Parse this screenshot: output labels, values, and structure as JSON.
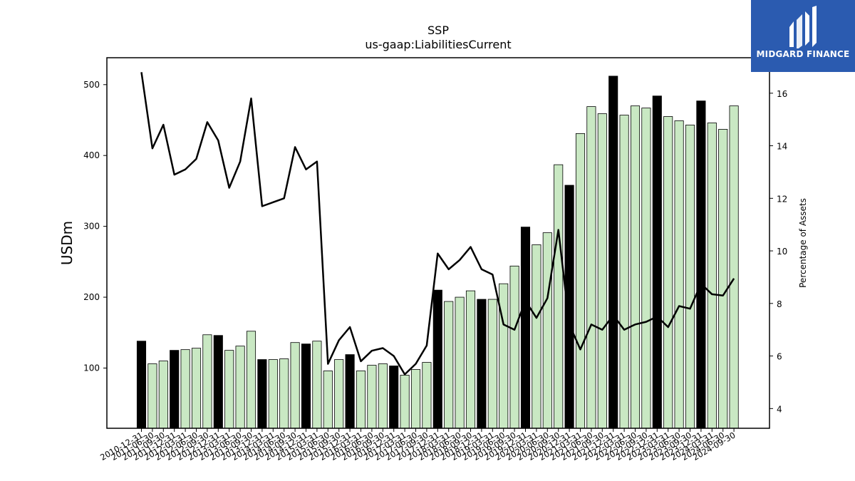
{
  "brand": {
    "name": "MIDGARD FINANCE",
    "logo_icon": "midgard-logo-icon",
    "color": "#2b5bb0"
  },
  "colors": {
    "bar_normal": "#c9e8c3",
    "bar_highlight": "#000000",
    "line": "#000000"
  },
  "chart_data": {
    "type": "bar",
    "title": "SSP",
    "subtitle": "us-gaap:LiabilitiesCurrent",
    "ylabel": "USDm",
    "y2label": "Percentage of Assets",
    "ylim": [
      15,
      538
    ],
    "y2lim": [
      3.25,
      17.35
    ],
    "yticks": [
      100,
      200,
      300,
      400,
      500
    ],
    "y2ticks": [
      4,
      6,
      8,
      10,
      12,
      14,
      16
    ],
    "grid": false,
    "categories": [
      "2010-12-31",
      "2011-06-30",
      "2011-09-30",
      "2011-12-31",
      "2012-03-31",
      "2012-06-30",
      "2012-09-30",
      "2012-12-31",
      "2013-03-31",
      "2013-06-30",
      "2013-09-30",
      "2013-12-31",
      "2014-03-31",
      "2014-06-30",
      "2014-09-30",
      "2014-12-31",
      "2015-03-31",
      "2015-06-30",
      "2015-09-30",
      "2015-12-31",
      "2016-03-31",
      "2016-06-30",
      "2016-09-30",
      "2016-12-31",
      "2017-03-31",
      "2017-06-30",
      "2017-09-30",
      "2017-12-31",
      "2018-03-31",
      "2018-06-30",
      "2018-09-30",
      "2018-12-31",
      "2019-03-31",
      "2019-06-30",
      "2019-09-30",
      "2019-12-31",
      "2020-03-31",
      "2020-06-30",
      "2020-09-30",
      "2020-12-31",
      "2021-03-31",
      "2021-06-30",
      "2021-09-30",
      "2021-12-31",
      "2022-03-31",
      "2022-06-30",
      "2022-09-30",
      "2022-12-31",
      "2023-03-31",
      "2023-06-30",
      "2023-09-30",
      "2023-12-31",
      "2024-03-31",
      "2024-06-30",
      "2024-09-30"
    ],
    "series": [
      {
        "type": "bar",
        "values": [
          138,
          106,
          110,
          125,
          126,
          128,
          147,
          146,
          125,
          131,
          152,
          112,
          112,
          113,
          136,
          134,
          138,
          96,
          112,
          119,
          96,
          104,
          106,
          103,
          90,
          98,
          108,
          210,
          194,
          200,
          209,
          197,
          197,
          219,
          244,
          299,
          274,
          291,
          387,
          358,
          431,
          469,
          459,
          512,
          457,
          470,
          467,
          484,
          455,
          449,
          443,
          477,
          446,
          437,
          470
        ],
        "highlight": [
          true,
          false,
          false,
          true,
          false,
          false,
          false,
          true,
          false,
          false,
          false,
          true,
          false,
          false,
          false,
          true,
          false,
          false,
          false,
          true,
          false,
          false,
          false,
          true,
          false,
          false,
          false,
          true,
          false,
          false,
          false,
          true,
          false,
          false,
          false,
          true,
          false,
          false,
          false,
          true,
          false,
          false,
          false,
          true,
          false,
          false,
          false,
          true,
          false,
          false,
          false,
          true,
          false,
          false,
          false
        ]
      },
      {
        "type": "line",
        "axis": "right",
        "values": [
          16.8,
          13.9,
          14.8,
          12.9,
          13.1,
          13.5,
          14.9,
          14.2,
          12.4,
          13.4,
          15.8,
          11.7,
          11.85,
          12.0,
          13.95,
          13.1,
          13.4,
          5.7,
          6.6,
          7.1,
          5.8,
          6.2,
          6.3,
          6.0,
          5.3,
          5.7,
          6.4,
          9.9,
          9.3,
          9.65,
          10.15,
          9.3,
          9.1,
          7.2,
          7.0,
          8.1,
          7.45,
          8.2,
          10.8,
          7.2,
          6.25,
          7.2,
          7.0,
          7.55,
          7.0,
          7.2,
          7.3,
          7.5,
          7.1,
          7.9,
          7.8,
          8.75,
          8.35,
          8.3,
          8.95
        ]
      }
    ]
  }
}
